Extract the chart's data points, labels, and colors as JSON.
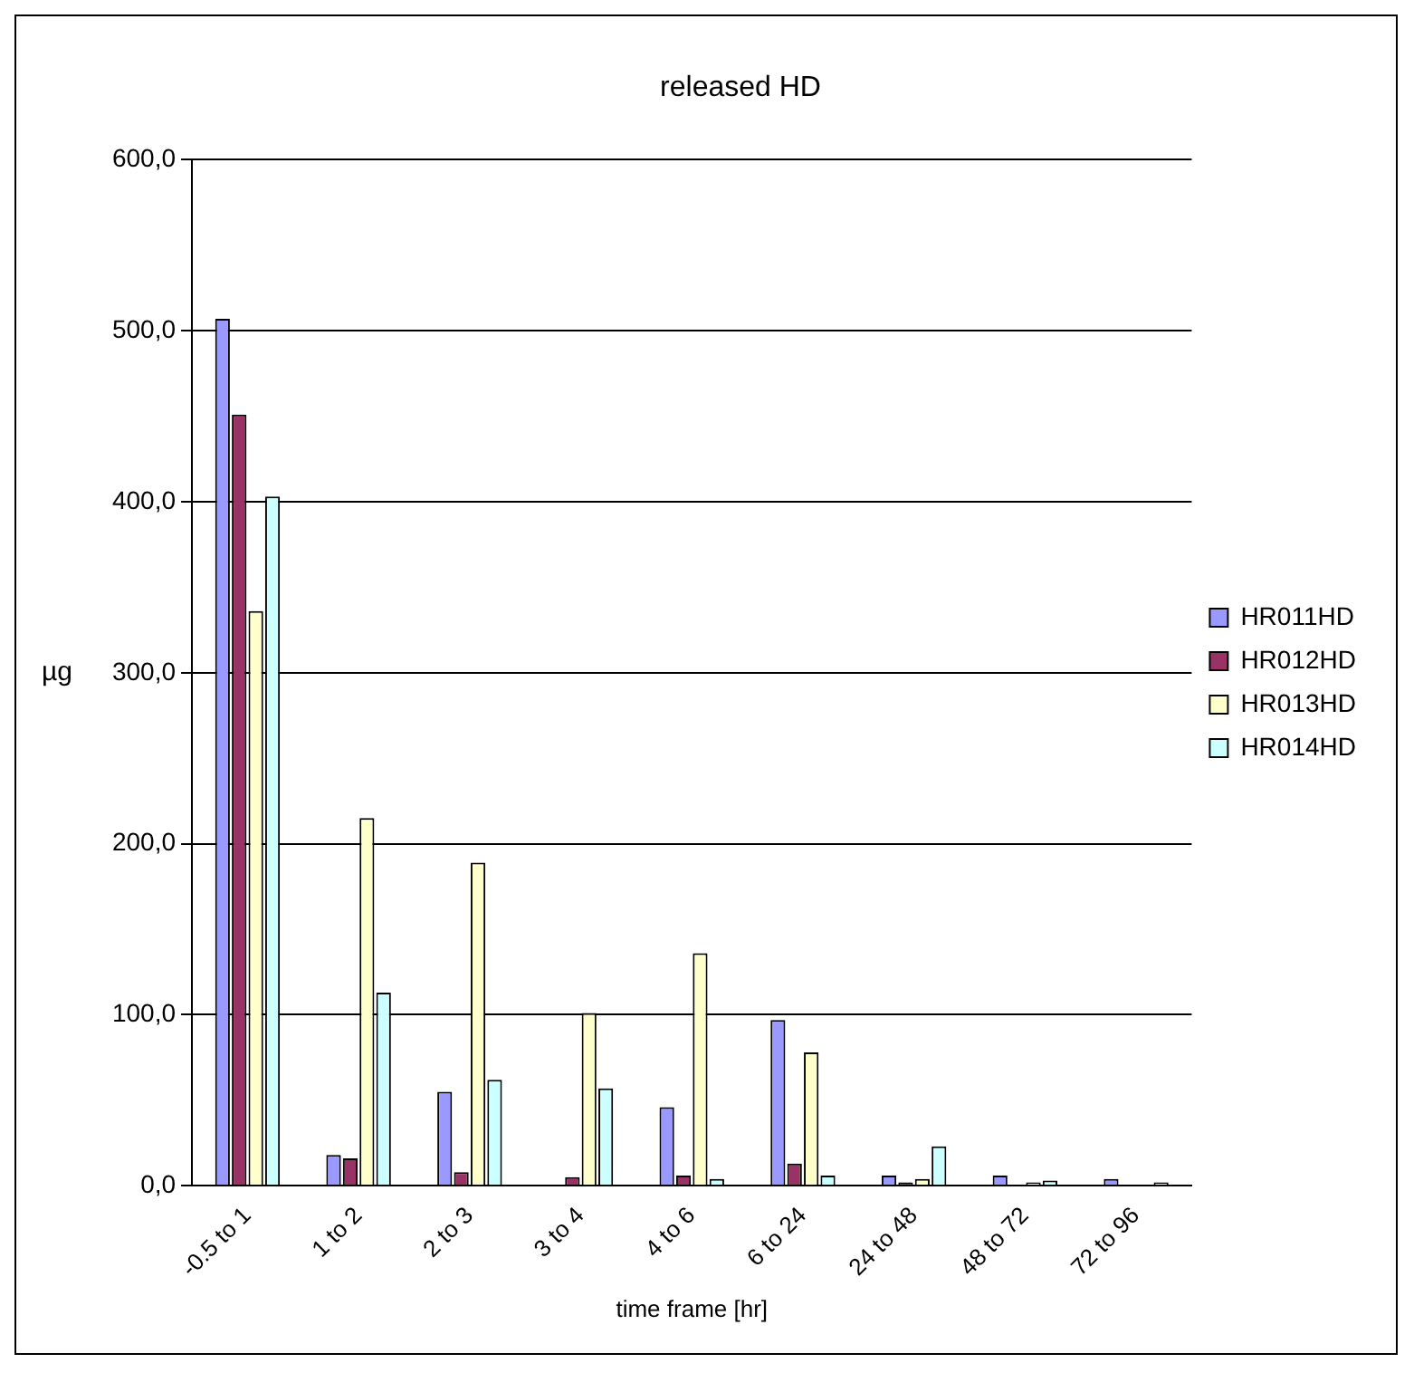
{
  "chart_data": {
    "type": "bar",
    "title": "released HD",
    "xlabel": "time frame [hr]",
    "ylabel": "µg",
    "categories": [
      "-0.5 to 1",
      "1 to 2",
      "2 to 3",
      "3 to 4",
      "4 to 6",
      "6 to 24",
      "24 to 48",
      "48 to 72",
      "72 to 96"
    ],
    "series": [
      {
        "name": "HR011HD",
        "color": "#9999ff",
        "values": [
          507,
          18,
          55,
          null,
          46,
          97,
          6,
          6,
          4
        ]
      },
      {
        "name": "HR012HD",
        "color": "#993366",
        "values": [
          451,
          16,
          8,
          5,
          6,
          13,
          2,
          null,
          null
        ]
      },
      {
        "name": "HR013HD",
        "color": "#ffffcc",
        "values": [
          336,
          215,
          189,
          101,
          136,
          78,
          4,
          2,
          0
        ]
      },
      {
        "name": "HR014HD",
        "color": "#ccffff",
        "values": [
          403,
          113,
          62,
          57,
          4,
          6,
          23,
          3,
          2
        ]
      }
    ],
    "ylim": [
      0,
      600
    ],
    "yticks": [
      {
        "value": 0,
        "label": "0,0"
      },
      {
        "value": 100,
        "label": "100,0"
      },
      {
        "value": 200,
        "label": "200,0"
      },
      {
        "value": 300,
        "label": "300,0"
      },
      {
        "value": 400,
        "label": "400,0"
      },
      {
        "value": 500,
        "label": "500,0"
      },
      {
        "value": 600,
        "label": "600,0"
      }
    ],
    "grid": "y",
    "legend": "right"
  }
}
